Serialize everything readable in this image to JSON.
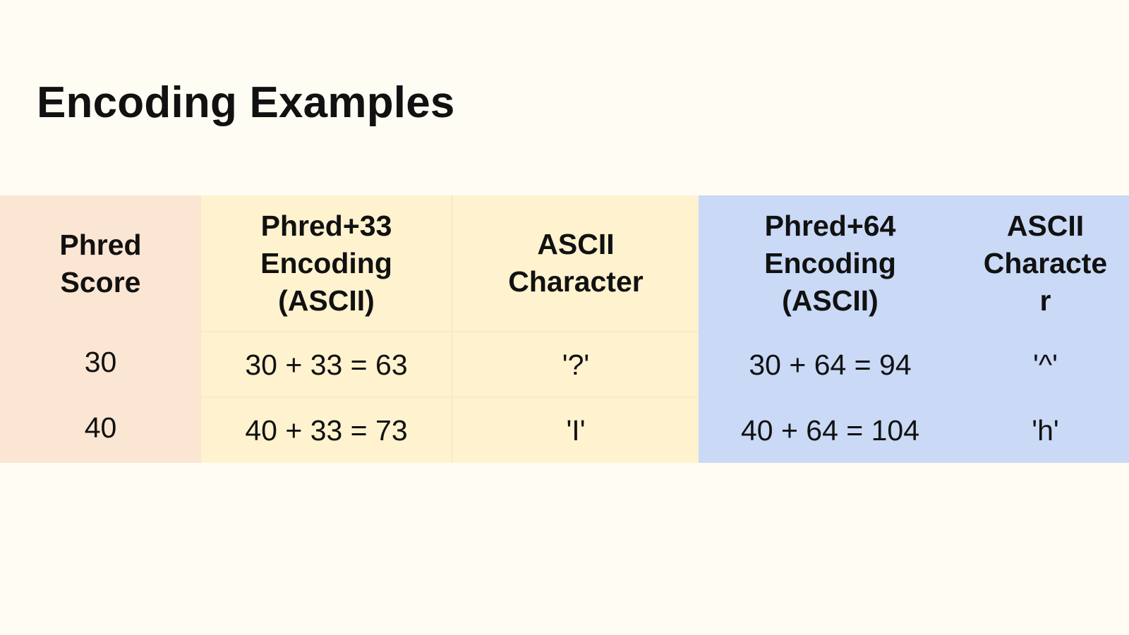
{
  "title": "Encoding Examples",
  "colors": {
    "background": "#fffcf4",
    "score_column": "#fbe6d3",
    "phred33_columns": "#fff2cf",
    "phred64_columns": "#c9d9f6"
  },
  "table": {
    "headers": [
      [
        "Phred",
        "Score"
      ],
      [
        "Phred+33",
        "Encoding",
        "(ASCII)"
      ],
      [
        "ASCII",
        "Character"
      ],
      [
        "Phred+64",
        "Encoding",
        "(ASCII)"
      ],
      [
        "ASCII",
        "Characte",
        "r"
      ]
    ],
    "rows": [
      [
        "30",
        "30 + 33 = 63",
        "'?'",
        "30 + 64 = 94",
        "'^'"
      ],
      [
        "40",
        "40 + 33 = 73",
        "'I'",
        "40 + 64 = 104",
        "'h'"
      ]
    ]
  }
}
